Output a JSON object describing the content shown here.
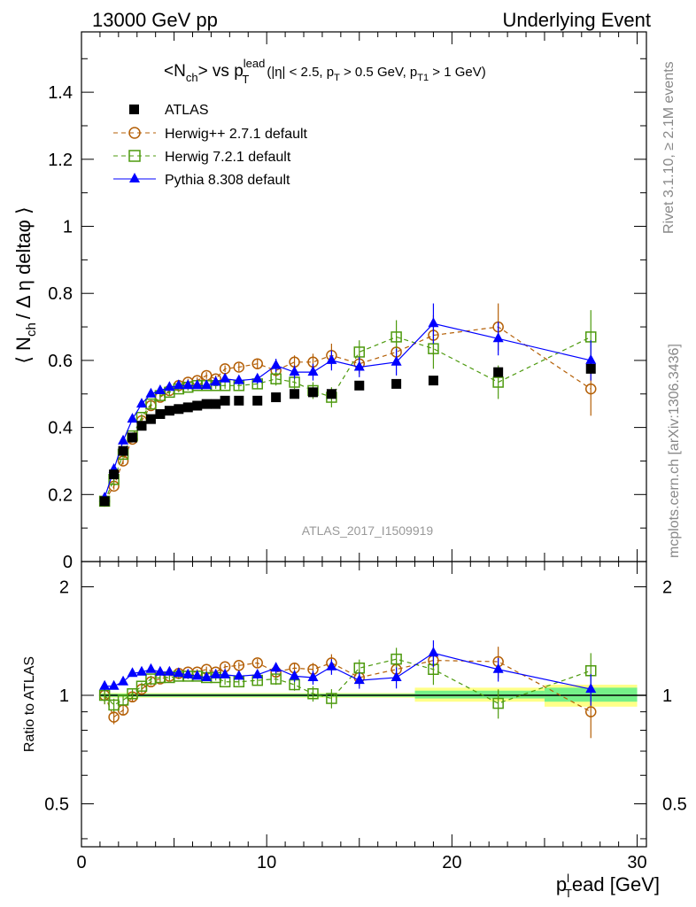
{
  "header": {
    "left": "13000 GeV pp",
    "right": "Underlying Event"
  },
  "side_labels": {
    "rivet": "Rivet 3.1.10, ≥ 2.1M events",
    "mcplots": "mcplots.cern.ch [arXiv:1306.3436]"
  },
  "analysis_tag": "ATLAS_2017_I1509919",
  "title": {
    "main": "<N",
    "sub1": "ch",
    "mid": "> vs p",
    "sup": "lead",
    "sub2": "T",
    "cuts_a": "(|η| < 2.5, p",
    "cuts_b": " > 0.5 GeV, p",
    "cuts_sub": "T1",
    "cuts_c": " > 1 GeV)",
    "cuts_subT": "T"
  },
  "ylabel_main": "⟨ N",
  "ylabel_sub": "ch",
  "ylabel_rest": "/ Δ η deltaφ ⟩",
  "ylabel_ratio": "Ratio to ATLAS",
  "xlabel": {
    "p": "p",
    "sup": "l",
    "sub": "T",
    "rest": "ead [GeV]"
  },
  "chart_data": {
    "type": "scatter",
    "xlim": [
      0,
      30.5
    ],
    "ylim": [
      0,
      1.58
    ],
    "ratio_ylim_log": [
      0.38,
      2.35
    ],
    "xticks": [
      0,
      10,
      20,
      30
    ],
    "yticks": [
      0.2,
      0.4,
      0.6,
      0.8,
      1,
      1.2,
      1.4
    ],
    "ytick_labels": [
      "0.2",
      "0.4",
      "0.6",
      "0.8",
      "1",
      "1.2",
      "1.4"
    ],
    "y_zero_label": "0",
    "ratio_yticks": [
      0.5,
      1,
      2
    ],
    "ratio_ytick_labels": [
      "0.5",
      "1",
      "2"
    ],
    "x": [
      1.25,
      1.75,
      2.25,
      2.75,
      3.25,
      3.75,
      4.25,
      4.75,
      5.25,
      5.75,
      6.25,
      6.75,
      7.25,
      7.75,
      8.5,
      9.5,
      10.5,
      11.5,
      12.5,
      13.5,
      15,
      17,
      19,
      22.5,
      27.5
    ],
    "series": [
      {
        "name": "ATLAS",
        "color": "#000000",
        "marker": "square-filled",
        "values": [
          0.18,
          0.26,
          0.33,
          0.37,
          0.405,
          0.425,
          0.44,
          0.45,
          0.455,
          0.46,
          0.465,
          0.47,
          0.47,
          0.48,
          0.48,
          0.48,
          0.49,
          0.5,
          0.505,
          0.5,
          0.525,
          0.53,
          0.54,
          0.565,
          0.575
        ],
        "errors": [
          0.005,
          0.005,
          0.005,
          0.005,
          0.005,
          0.005,
          0.005,
          0.005,
          0.005,
          0.005,
          0.005,
          0.005,
          0.005,
          0.005,
          0.005,
          0.005,
          0.006,
          0.006,
          0.007,
          0.008,
          0.008,
          0.009,
          0.01,
          0.012,
          0.015
        ]
      },
      {
        "name": "Herwig++ 2.7.1 default",
        "color": "#b45f06",
        "marker": "circle-open",
        "dash": "5,4",
        "values": [
          0.18,
          0.225,
          0.3,
          0.365,
          0.42,
          0.465,
          0.49,
          0.51,
          0.525,
          0.535,
          0.54,
          0.555,
          0.545,
          0.575,
          0.58,
          0.59,
          0.57,
          0.595,
          0.595,
          0.615,
          0.59,
          0.625,
          0.675,
          0.7,
          0.515
        ],
        "errors": [
          0.01,
          0.01,
          0.01,
          0.01,
          0.01,
          0.01,
          0.01,
          0.01,
          0.01,
          0.01,
          0.01,
          0.01,
          0.01,
          0.01,
          0.012,
          0.015,
          0.02,
          0.02,
          0.025,
          0.035,
          0.03,
          0.04,
          0.06,
          0.07,
          0.08
        ]
      },
      {
        "name": "Herwig 7.2.1 default",
        "color": "#4d9a0e",
        "marker": "square-open",
        "dash": "5,4",
        "values": [
          0.18,
          0.245,
          0.32,
          0.375,
          0.43,
          0.47,
          0.495,
          0.505,
          0.515,
          0.52,
          0.525,
          0.525,
          0.525,
          0.525,
          0.525,
          0.53,
          0.545,
          0.535,
          0.51,
          0.49,
          0.625,
          0.67,
          0.635,
          0.535,
          0.67
        ],
        "errors": [
          0.01,
          0.01,
          0.01,
          0.01,
          0.01,
          0.01,
          0.01,
          0.01,
          0.01,
          0.01,
          0.01,
          0.01,
          0.01,
          0.01,
          0.012,
          0.015,
          0.02,
          0.02,
          0.025,
          0.03,
          0.035,
          0.05,
          0.06,
          0.05,
          0.08
        ]
      },
      {
        "name": "Pythia 8.308 default",
        "color": "#0000ff",
        "marker": "triangle-filled",
        "dash": "",
        "values": [
          0.19,
          0.275,
          0.36,
          0.425,
          0.47,
          0.5,
          0.51,
          0.52,
          0.525,
          0.525,
          0.525,
          0.525,
          0.535,
          0.545,
          0.54,
          0.545,
          0.585,
          0.565,
          0.565,
          0.6,
          0.58,
          0.595,
          0.71,
          0.665,
          0.6
        ],
        "errors": [
          0.005,
          0.005,
          0.005,
          0.005,
          0.005,
          0.005,
          0.005,
          0.005,
          0.005,
          0.005,
          0.005,
          0.005,
          0.008,
          0.01,
          0.012,
          0.015,
          0.02,
          0.02,
          0.025,
          0.03,
          0.03,
          0.04,
          0.06,
          0.05,
          0.06
        ]
      }
    ],
    "ratio_series": [
      {
        "name": "Herwig++ 2.7.1 default",
        "values": [
          1.0,
          0.87,
          0.91,
          0.99,
          1.04,
          1.09,
          1.11,
          1.13,
          1.15,
          1.16,
          1.16,
          1.18,
          1.16,
          1.2,
          1.21,
          1.23,
          1.16,
          1.19,
          1.18,
          1.23,
          1.12,
          1.18,
          1.25,
          1.24,
          0.9
        ]
      },
      {
        "name": "Herwig 7.2.1 default",
        "values": [
          1.0,
          0.94,
          0.97,
          1.01,
          1.06,
          1.11,
          1.12,
          1.12,
          1.13,
          1.13,
          1.13,
          1.12,
          1.12,
          1.09,
          1.09,
          1.1,
          1.11,
          1.07,
          1.01,
          0.98,
          1.19,
          1.26,
          1.18,
          0.95,
          1.17
        ]
      },
      {
        "name": "Pythia 8.308 default",
        "values": [
          1.06,
          1.06,
          1.09,
          1.15,
          1.16,
          1.18,
          1.16,
          1.16,
          1.15,
          1.14,
          1.13,
          1.12,
          1.14,
          1.14,
          1.13,
          1.14,
          1.19,
          1.13,
          1.12,
          1.2,
          1.1,
          1.12,
          1.31,
          1.18,
          1.04
        ]
      }
    ],
    "band": {
      "yellow": [
        0.96,
        1.07
      ],
      "green": [
        0.98,
        1.03
      ]
    }
  }
}
